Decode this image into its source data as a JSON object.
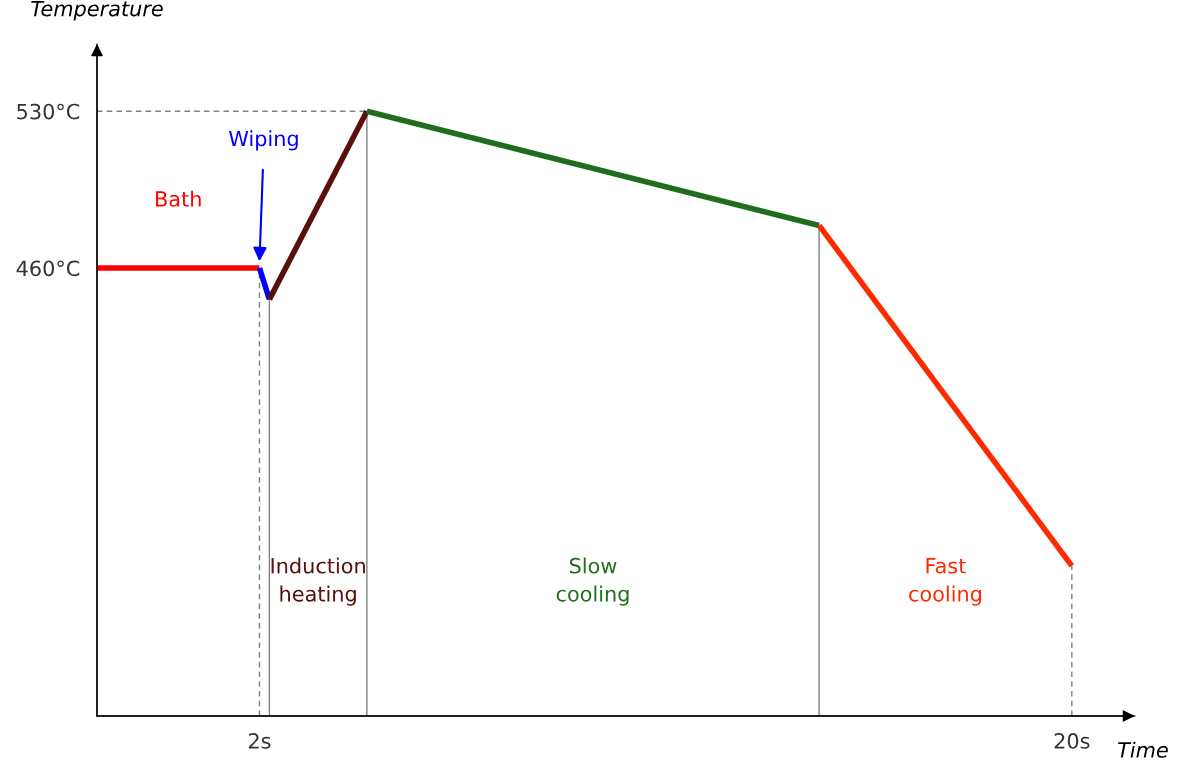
{
  "chart_data": {
    "type": "line",
    "xlabel": "Time",
    "ylabel": "Temperature",
    "xlim": [
      -1.6,
      21.4
    ],
    "ylim": [
      260,
      560
    ],
    "xticks": [
      {
        "value": 2,
        "label": "2s"
      },
      {
        "value": 20,
        "label": "20s"
      }
    ],
    "yticks": [
      {
        "value": 460,
        "label": "460°C"
      },
      {
        "value": 530,
        "label": "530°C"
      }
    ],
    "grid": false,
    "series": [
      {
        "name": "Bath",
        "color": "#ff0000",
        "x": [
          -1.6,
          2
        ],
        "values": [
          460,
          460
        ]
      },
      {
        "name": "Wiping",
        "color": "#0000ff",
        "x": [
          2,
          2.22
        ],
        "values": [
          460,
          446
        ]
      },
      {
        "name": "Induction heating",
        "color": "#5a0f0a",
        "x": [
          2.22,
          4.38
        ],
        "values": [
          446,
          530
        ]
      },
      {
        "name": "Slow cooling",
        "color": "#1e6e1e",
        "x": [
          4.38,
          14.4
        ],
        "values": [
          530,
          479
        ]
      },
      {
        "name": "Fast cooling",
        "color": "#ff2a00",
        "x": [
          14.4,
          20
        ],
        "values": [
          479,
          327
        ]
      }
    ],
    "ref_lines": [
      {
        "axis": "x",
        "value": 2,
        "color": "#808080",
        "line_style": "dashed"
      },
      {
        "axis": "x",
        "value": 2.22,
        "color": "#808080",
        "line_style": "solid"
      },
      {
        "axis": "x",
        "value": 4.38,
        "color": "#808080",
        "line_style": "solid"
      },
      {
        "axis": "x",
        "value": 14.4,
        "color": "#808080",
        "line_style": "solid"
      },
      {
        "axis": "x",
        "value": 20,
        "color": "#808080",
        "line_style": "dashed"
      },
      {
        "axis": "y",
        "value": 530,
        "color": "#808080",
        "line_style": "dashed"
      }
    ]
  }
}
